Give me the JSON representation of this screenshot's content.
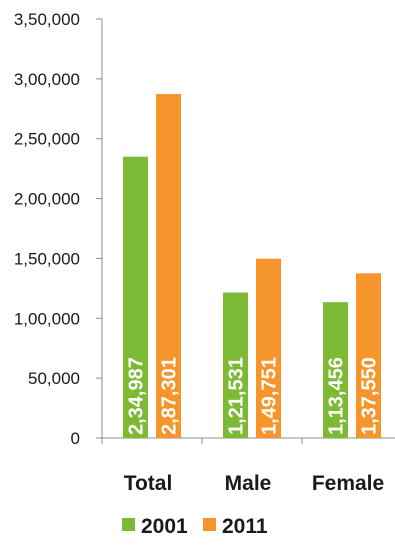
{
  "chart_data": {
    "type": "bar",
    "title": "",
    "xlabel": "",
    "ylabel": "",
    "categories": [
      "Total",
      "Male",
      "Female"
    ],
    "series": [
      {
        "name": "2001",
        "color": "#7cb934",
        "values": [
          234987,
          121531,
          113456
        ],
        "labels": [
          "2,34,987",
          "1,21,531",
          "1,13,456"
        ]
      },
      {
        "name": "2011",
        "color": "#f5952b",
        "values": [
          287301,
          149751,
          137550
        ],
        "labels": [
          "2,87,301",
          "1,49,751",
          "1,37,550"
        ]
      }
    ],
    "ylim": [
      0,
      350000
    ],
    "y_ticks": [
      0,
      50000,
      100000,
      150000,
      200000,
      250000,
      300000,
      350000
    ],
    "y_tick_labels": [
      "0",
      "50,000",
      "1,00,000",
      "1,50,000",
      "2,00,000",
      "2,50,000",
      "3,00,000",
      "3,50,000"
    ],
    "grid": false,
    "legend_position": "bottom"
  }
}
